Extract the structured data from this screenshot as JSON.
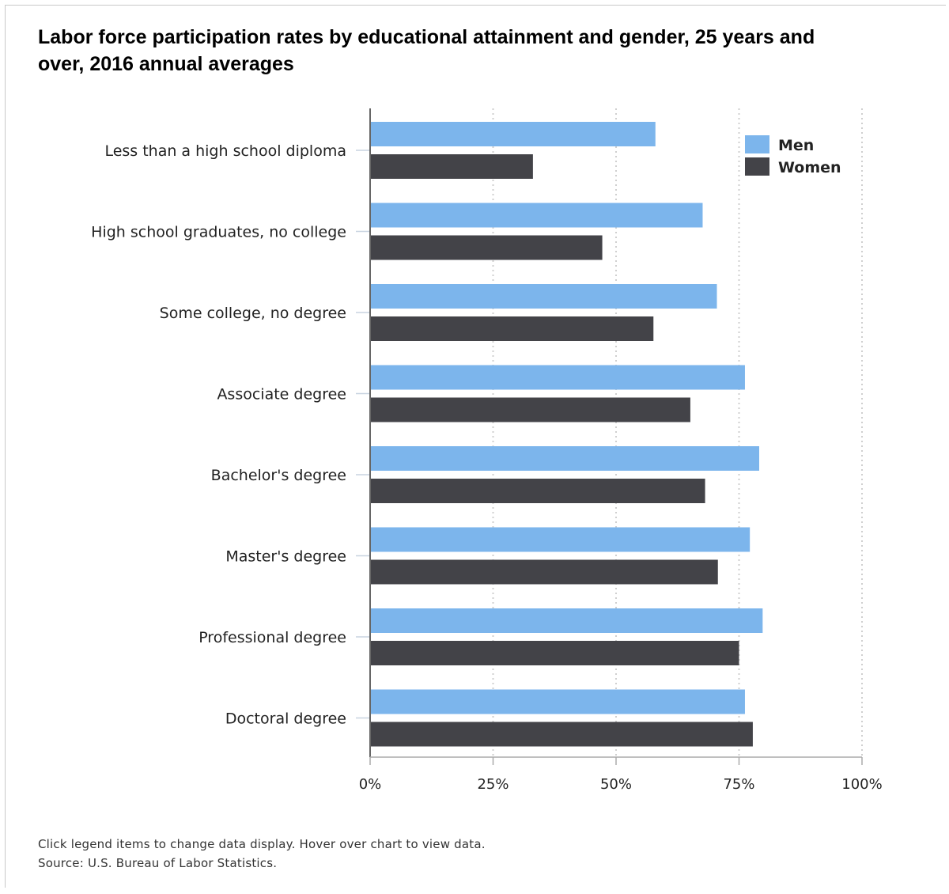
{
  "title": "Labor force participation rates by educational attainment and gender, 25 years and over, 2016 annual averages",
  "notes": {
    "interaction": "Click legend items to change data display. Hover over chart to view data.",
    "source": "Source: U.S. Bureau of Labor Statistics."
  },
  "chart_data": {
    "type": "bar",
    "orientation": "horizontal",
    "title": "Labor force participation rates by educational attainment and gender, 25 years and over, 2016 annual averages",
    "categories": [
      "Less than a high school diploma",
      "High school graduates, no college",
      "Some college, no degree",
      "Associate degree",
      "Bachelor's degree",
      "Master's degree",
      "Professional degree",
      "Doctoral degree"
    ],
    "series": [
      {
        "name": "Men",
        "color": "#7cb5ec",
        "values": [
          58.0,
          67.6,
          70.5,
          76.2,
          79.1,
          77.2,
          79.8,
          76.2
        ]
      },
      {
        "name": "Women",
        "color": "#434348",
        "values": [
          33.1,
          47.2,
          57.6,
          65.1,
          68.1,
          70.7,
          75.0,
          77.8
        ]
      }
    ],
    "xlim": [
      0,
      100
    ],
    "xticks": [
      "0%",
      "25%",
      "50%",
      "75%",
      "100%"
    ],
    "xlabel": "",
    "ylabel": "",
    "grid": "vertical dotted",
    "legend": "top-right"
  }
}
